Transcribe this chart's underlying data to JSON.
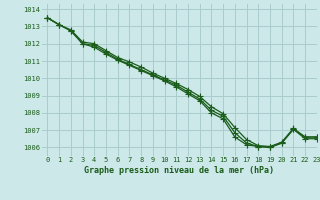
{
  "title": "Graphe pression niveau de la mer (hPa)",
  "bg_color": "#cce8e8",
  "grid_color": "#aacccc",
  "line_color": "#1a5c1a",
  "xlim": [
    -0.5,
    23
  ],
  "ylim": [
    1005.5,
    1014.3
  ],
  "yticks": [
    1006,
    1007,
    1008,
    1009,
    1010,
    1011,
    1012,
    1013,
    1014
  ],
  "xticks": [
    0,
    1,
    2,
    3,
    4,
    5,
    6,
    7,
    8,
    9,
    10,
    11,
    12,
    13,
    14,
    15,
    16,
    17,
    18,
    19,
    20,
    21,
    22,
    23
  ],
  "series": [
    [
      1013.5,
      1013.1,
      1012.75,
      1012.0,
      1011.8,
      1011.4,
      1011.05,
      1010.75,
      1010.45,
      1010.15,
      1009.85,
      1009.5,
      1009.1,
      1008.7,
      1008.0,
      1007.65,
      1006.6,
      1006.15,
      1006.05,
      1006.0,
      1006.25,
      1007.05,
      1006.6,
      1006.6
    ],
    [
      1013.5,
      1013.1,
      1012.75,
      1012.0,
      1011.9,
      1011.5,
      1011.1,
      1010.8,
      1010.5,
      1010.2,
      1009.9,
      1009.6,
      1009.2,
      1008.8,
      1008.15,
      1007.8,
      1006.85,
      1006.25,
      1006.05,
      1006.0,
      1006.25,
      1007.05,
      1006.5,
      1006.5
    ],
    [
      1013.5,
      1013.1,
      1012.8,
      1012.1,
      1012.0,
      1011.6,
      1011.2,
      1010.95,
      1010.65,
      1010.3,
      1010.0,
      1009.7,
      1009.35,
      1008.95,
      1008.35,
      1007.95,
      1007.15,
      1006.45,
      1006.1,
      1006.05,
      1006.3,
      1007.1,
      1006.6,
      1006.6
    ]
  ],
  "marker": "+",
  "markersize": 4,
  "linewidth": 0.9
}
